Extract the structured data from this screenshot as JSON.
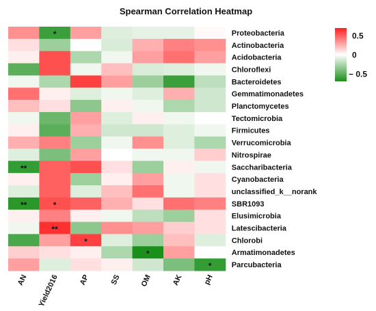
{
  "chart_data": {
    "type": "heatmap",
    "title": "Spearman Correlation Heatmap",
    "columns": [
      "AN",
      "Yield2016",
      "AP",
      "SS",
      "OM",
      "AK",
      "pH"
    ],
    "rows": [
      "Proteobacteria",
      "Actinobacteria",
      "Acidobacteria",
      "Chloroflexi",
      "Bacteroidetes",
      "Gemmatimonadetes",
      "Planctomycetes",
      "Tectomicrobia",
      "Firmicutes",
      "Verrucomicrobia",
      "Nitrospirae",
      "Saccharibacteria",
      "Cyanobacteria",
      "unclassified_k__norank",
      "SBR1093",
      "Elusimicrobia",
      "Latescibacteria",
      "Chlorobi",
      "Armatimonadetes",
      "Parcubacteria"
    ],
    "values": [
      [
        0.35,
        -0.6,
        0.3,
        -0.1,
        -0.08,
        -0.08,
        0.02
      ],
      [
        0.1,
        -0.3,
        0.0,
        -0.12,
        0.25,
        0.4,
        0.35
      ],
      [
        0.05,
        0.55,
        -0.25,
        -0.05,
        0.3,
        0.45,
        0.3
      ],
      [
        -0.5,
        0.55,
        -0.05,
        0.2,
        -0.12,
        -0.1,
        -0.05
      ],
      [
        -0.05,
        -0.25,
        0.6,
        0.3,
        -0.3,
        -0.6,
        -0.2
      ],
      [
        0.45,
        0.05,
        -0.1,
        -0.05,
        -0.1,
        0.25,
        -0.15
      ],
      [
        0.2,
        0.1,
        -0.35,
        0.05,
        -0.05,
        -0.25,
        -0.15
      ],
      [
        -0.05,
        -0.45,
        0.3,
        -0.1,
        0.05,
        -0.05,
        0.0
      ],
      [
        0.05,
        -0.5,
        0.25,
        -0.15,
        -0.15,
        -0.1,
        -0.05
      ],
      [
        0.25,
        0.4,
        -0.3,
        -0.05,
        0.35,
        -0.1,
        -0.25
      ],
      [
        -0.1,
        -0.4,
        0.3,
        0.0,
        -0.05,
        -0.05,
        0.15
      ],
      [
        -0.62,
        0.5,
        0.55,
        0.1,
        -0.3,
        0.05,
        -0.05
      ],
      [
        0.05,
        0.5,
        -0.3,
        0.05,
        0.3,
        -0.05,
        0.1
      ],
      [
        -0.1,
        0.5,
        -0.1,
        0.2,
        0.45,
        -0.05,
        0.1
      ],
      [
        -0.65,
        0.55,
        0.5,
        0.25,
        0.1,
        0.45,
        0.4
      ],
      [
        0.05,
        0.4,
        0.05,
        -0.05,
        -0.2,
        -0.3,
        0.1
      ],
      [
        -0.05,
        0.65,
        -0.35,
        0.35,
        0.3,
        0.15,
        0.1
      ],
      [
        -0.55,
        0.3,
        0.6,
        -0.1,
        -0.3,
        0.2,
        -0.1
      ],
      [
        0.15,
        0.1,
        0.05,
        -0.25,
        -0.7,
        0.3,
        0.0
      ],
      [
        0.3,
        -0.1,
        0.1,
        0.05,
        -0.15,
        -0.4,
        -0.62
      ]
    ],
    "significance": [
      [
        "",
        "*",
        "",
        "",
        "",
        "",
        ""
      ],
      [
        "",
        "",
        "",
        "",
        "",
        "",
        ""
      ],
      [
        "",
        "",
        "",
        "",
        "",
        "",
        ""
      ],
      [
        "",
        "",
        "",
        "",
        "",
        "",
        ""
      ],
      [
        "",
        "",
        "",
        "",
        "",
        "",
        ""
      ],
      [
        "",
        "",
        "",
        "",
        "",
        "",
        ""
      ],
      [
        "",
        "",
        "",
        "",
        "",
        "",
        ""
      ],
      [
        "",
        "",
        "",
        "",
        "",
        "",
        ""
      ],
      [
        "",
        "",
        "",
        "",
        "",
        "",
        ""
      ],
      [
        "",
        "",
        "",
        "",
        "",
        "",
        ""
      ],
      [
        "",
        "",
        "",
        "",
        "",
        "",
        ""
      ],
      [
        "**",
        "",
        "",
        "",
        "",
        "",
        ""
      ],
      [
        "",
        "",
        "",
        "",
        "",
        "",
        ""
      ],
      [
        "",
        "",
        "",
        "",
        "",
        "",
        ""
      ],
      [
        "**",
        "*",
        "",
        "",
        "",
        "",
        ""
      ],
      [
        "",
        "",
        "",
        "",
        "",
        "",
        ""
      ],
      [
        "",
        "**",
        "",
        "",
        "",
        "",
        ""
      ],
      [
        "",
        "",
        "*",
        "",
        "",
        "",
        ""
      ],
      [
        "",
        "",
        "",
        "",
        "*",
        "",
        ""
      ],
      [
        "",
        "",
        "",
        "",
        "",
        "",
        "*"
      ]
    ],
    "color_range": [
      -0.7,
      0.7
    ],
    "colors": {
      "positive": "#ff2020",
      "neutral": "#ffffff",
      "negative": "#1a8f1a"
    },
    "legend": {
      "placement": "right",
      "ticks": [
        0.5,
        0,
        -0.5
      ],
      "tick_labels": [
        "0.5",
        "0",
        "− 0.5"
      ]
    }
  }
}
